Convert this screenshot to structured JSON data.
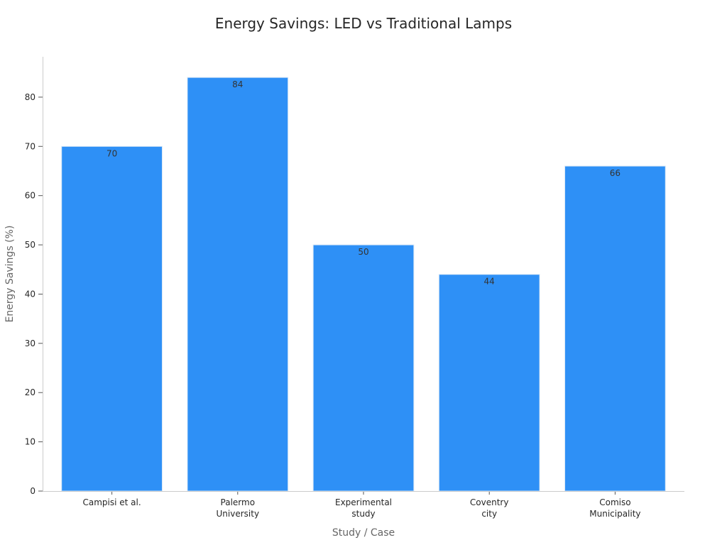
{
  "chart_data": {
    "type": "bar",
    "title": "Energy Savings: LED vs Traditional Lamps",
    "xlabel": "Study / Case",
    "ylabel": "Energy Savings (%)",
    "categories": [
      [
        "Campisi et al."
      ],
      [
        "Palermo",
        "University"
      ],
      [
        "Experimental",
        "study"
      ],
      [
        "Coventry",
        "city"
      ],
      [
        "Comiso",
        "Municipality"
      ]
    ],
    "values": [
      70,
      84,
      50,
      44,
      66
    ],
    "yticks": [
      0,
      10,
      20,
      30,
      40,
      50,
      60,
      70,
      80
    ],
    "ylim": [
      0,
      88.2
    ],
    "grid": false,
    "bar_color": "#2e90f6",
    "bar_edge_color": "#d9e8f7"
  }
}
